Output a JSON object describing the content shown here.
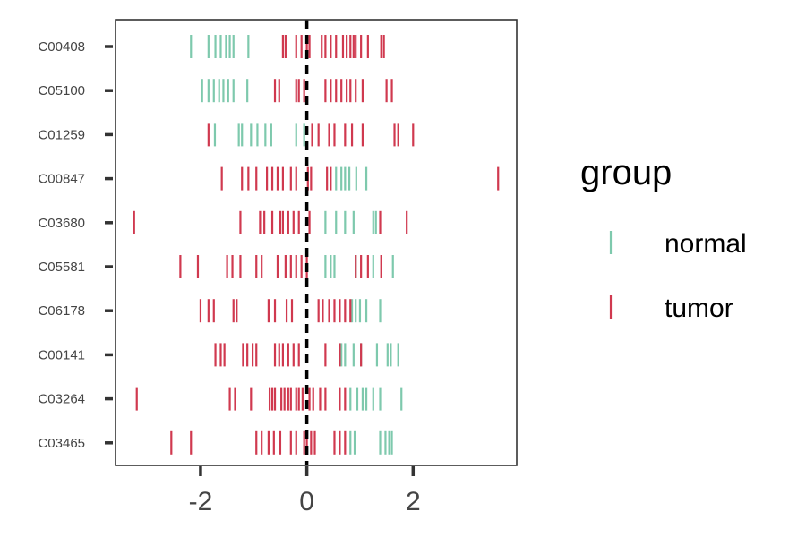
{
  "chart_data": {
    "type": "scatter",
    "mark": "rug-tick",
    "xlim": [
      -3.6,
      3.95
    ],
    "xticks": [
      -2,
      0,
      2
    ],
    "xtick_labels": [
      "-2",
      "0",
      "2"
    ],
    "reference_line_x": 0,
    "grid": false,
    "categories": [
      "C00408",
      "C05100",
      "C01259",
      "C00847",
      "C03680",
      "C05581",
      "C06178",
      "C00141",
      "C03264",
      "C03465"
    ],
    "legend": {
      "title": "group",
      "position": "right",
      "entries": [
        {
          "label": "normal",
          "color": "#7ec9ad"
        },
        {
          "label": "tumor",
          "color": "#d0394f"
        }
      ]
    },
    "series": [
      {
        "name": "normal",
        "color": "#7ec9ad",
        "points": {
          "C00408": [
            -2.18,
            -1.85,
            -1.72,
            -1.62,
            -1.52,
            -1.45,
            -1.38,
            -1.1
          ],
          "C05100": [
            -1.97,
            -1.85,
            -1.75,
            -1.65,
            -1.57,
            -1.48,
            -1.38,
            -1.12
          ],
          "C01259": [
            -1.73,
            -1.28,
            -1.22,
            -1.05,
            -0.93,
            -0.78,
            -0.67,
            -0.2,
            -0.05
          ],
          "C00847": [
            0.55,
            0.65,
            0.72,
            0.8,
            0.93,
            1.12
          ],
          "C03680": [
            0.35,
            0.55,
            0.72,
            0.88,
            1.25,
            1.3
          ],
          "C05581": [
            0.35,
            0.45,
            0.52,
            0.92,
            1.25,
            1.62
          ],
          "C06178": [
            0.85,
            0.92,
            1.0,
            1.12,
            1.38
          ],
          "C00141": [
            0.65,
            0.72,
            0.88,
            1.02,
            1.32,
            1.52,
            1.58,
            1.72
          ],
          "C03264": [
            0.82,
            0.95,
            1.05,
            1.12,
            1.25,
            1.38,
            1.78
          ],
          "C03465": [
            0.82,
            0.9,
            1.38,
            1.48,
            1.55,
            1.6
          ]
        }
      },
      {
        "name": "tumor",
        "color": "#d0394f",
        "points": {
          "C00408": [
            -0.45,
            -0.4,
            -0.2,
            -0.1,
            0.0,
            0.05,
            0.28,
            0.35,
            0.45,
            0.55,
            0.68,
            0.75,
            0.82,
            0.88,
            0.92,
            1.02,
            1.15,
            1.4,
            1.45
          ],
          "C05100": [
            -0.6,
            -0.52,
            -0.2,
            -0.15,
            -0.05,
            0.35,
            0.45,
            0.55,
            0.65,
            0.75,
            0.82,
            0.92,
            1.05,
            1.5,
            1.6
          ],
          "C01259": [
            -1.85,
            0.1,
            0.22,
            0.42,
            0.52,
            0.72,
            0.85,
            1.05,
            1.65,
            1.72,
            2.0
          ],
          "C00847": [
            -1.6,
            -1.22,
            -1.1,
            -0.95,
            -0.75,
            -0.65,
            -0.55,
            -0.45,
            -0.3,
            -0.2,
            0.02,
            0.08,
            0.38,
            0.45,
            3.6
          ],
          "C03680": [
            -3.25,
            -1.25,
            -0.88,
            -0.8,
            -0.65,
            -0.5,
            -0.45,
            -0.35,
            -0.25,
            -0.15,
            0.05,
            1.38,
            1.88
          ],
          "C05581": [
            -2.38,
            -2.05,
            -1.5,
            -1.4,
            -1.25,
            -0.95,
            -0.85,
            -0.55,
            -0.4,
            -0.3,
            -0.2,
            -0.1,
            0.0,
            0.92,
            1.02,
            1.15,
            1.4
          ],
          "C06178": [
            -2.0,
            -1.85,
            -1.75,
            -1.38,
            -1.32,
            -0.72,
            -0.6,
            -0.38,
            -0.28,
            0.22,
            0.3,
            0.42,
            0.52,
            0.62,
            0.72,
            0.82
          ],
          "C00141": [
            -1.72,
            -1.62,
            -1.55,
            -1.2,
            -1.12,
            -1.02,
            -0.95,
            -0.6,
            -0.52,
            -0.45,
            -0.35,
            -0.25,
            -0.15,
            0.35,
            0.62,
            1.02
          ],
          "C03264": [
            -3.2,
            -1.45,
            -1.35,
            -1.05,
            -0.7,
            -0.65,
            -0.6,
            -0.48,
            -0.42,
            -0.35,
            -0.3,
            -0.2,
            -0.15,
            -0.08,
            0.05,
            0.12,
            0.25,
            0.35,
            0.62,
            0.72
          ],
          "C03465": [
            -2.55,
            -2.18,
            -0.95,
            -0.85,
            -0.72,
            -0.62,
            -0.5,
            -0.3,
            -0.2,
            -0.05,
            0.0,
            0.08,
            0.15,
            0.52,
            0.62,
            0.72
          ]
        }
      }
    ]
  }
}
